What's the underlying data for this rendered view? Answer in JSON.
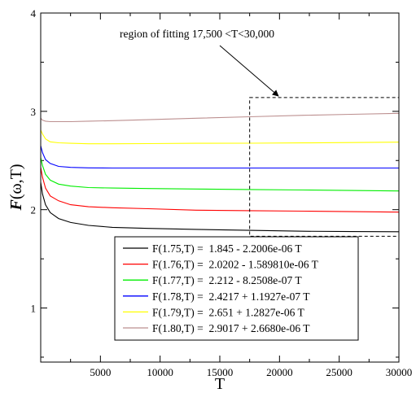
{
  "chart_data": {
    "type": "line",
    "xlabel": "T",
    "ylabel": "F(ω,T)",
    "ylabel_main": "F",
    "ylabel_rest": "(ω,T)",
    "xlim": [
      0,
      30000
    ],
    "ylim": [
      0.45,
      4.0
    ],
    "x_ticks": [
      5000,
      10000,
      15000,
      20000,
      25000,
      30000
    ],
    "x_tick_labels": [
      "5000",
      "10000",
      "15000",
      "20000",
      "25000",
      "30000"
    ],
    "y_ticks": [
      1,
      2,
      3,
      4
    ],
    "y_tick_labels": [
      "1",
      "2",
      "3",
      "4"
    ],
    "legend_position": "bottom-center",
    "annotation": {
      "text": "region of fitting 17,500 <T<30,000",
      "box_x": [
        17500,
        30000
      ],
      "box_y": [
        1.73,
        3.14
      ],
      "arrow_target": [
        19900,
        3.14
      ]
    },
    "series": [
      {
        "name": "F(1.75,T) =  1.845 - 2.2006e-06 T",
        "color": "#000000",
        "x": [
          0,
          150,
          400,
          800,
          1500,
          2500,
          4000,
          6000,
          9000,
          13000,
          17500,
          22000,
          26000,
          30000
        ],
        "y": [
          2.28,
          2.16,
          2.05,
          1.97,
          1.91,
          1.87,
          1.84,
          1.82,
          1.81,
          1.8,
          1.79,
          1.781,
          1.777,
          1.776
        ]
      },
      {
        "name": "F(1.76,T) =  2.0202 - 1.589810e-06 T",
        "color": "#ff0000",
        "x": [
          0,
          150,
          400,
          800,
          1500,
          2500,
          4000,
          6000,
          9000,
          13000,
          17500,
          22000,
          26000,
          30000
        ],
        "y": [
          2.43,
          2.33,
          2.22,
          2.14,
          2.09,
          2.05,
          2.03,
          2.02,
          2.01,
          1.995,
          1.99,
          1.985,
          1.98,
          1.975
        ]
      },
      {
        "name": "F(1.77,T) =  2.212 - 8.2508e-07 T",
        "color": "#00ee00",
        "x": [
          0,
          150,
          400,
          800,
          1500,
          2500,
          4000,
          6000,
          9000,
          13000,
          17500,
          22000,
          26000,
          30000
        ],
        "y": [
          2.53,
          2.45,
          2.36,
          2.3,
          2.26,
          2.24,
          2.225,
          2.22,
          2.215,
          2.21,
          2.205,
          2.2,
          2.195,
          2.19
        ]
      },
      {
        "name": "F(1.78,T) =  2.4217 + 1.1927e-07 T",
        "color": "#0000ff",
        "x": [
          0,
          150,
          400,
          800,
          1500,
          2500,
          4000,
          6000,
          9000,
          13000,
          17500,
          22000,
          26000,
          30000
        ],
        "y": [
          2.65,
          2.58,
          2.51,
          2.47,
          2.44,
          2.43,
          2.425,
          2.424,
          2.424,
          2.424,
          2.424,
          2.424,
          2.424,
          2.424
        ]
      },
      {
        "name": "F(1.79,T) =  2.651 + 1.2827e-06 T",
        "color": "#ffff00",
        "x": [
          0,
          150,
          400,
          800,
          1500,
          2500,
          4000,
          6000,
          9000,
          13000,
          17500,
          22000,
          26000,
          30000
        ],
        "y": [
          2.81,
          2.77,
          2.72,
          2.69,
          2.68,
          2.675,
          2.67,
          2.67,
          2.672,
          2.675,
          2.676,
          2.679,
          2.683,
          2.687
        ]
      },
      {
        "name": "F(1.80,T) =  2.9017 + 2.6680e-06 T",
        "color": "#bc8f8f",
        "x": [
          0,
          150,
          400,
          800,
          1500,
          2500,
          4000,
          6000,
          9000,
          13000,
          17500,
          22000,
          26000,
          30000
        ],
        "y": [
          2.93,
          2.91,
          2.9,
          2.895,
          2.895,
          2.895,
          2.9,
          2.905,
          2.915,
          2.93,
          2.945,
          2.96,
          2.97,
          2.98
        ]
      }
    ]
  }
}
